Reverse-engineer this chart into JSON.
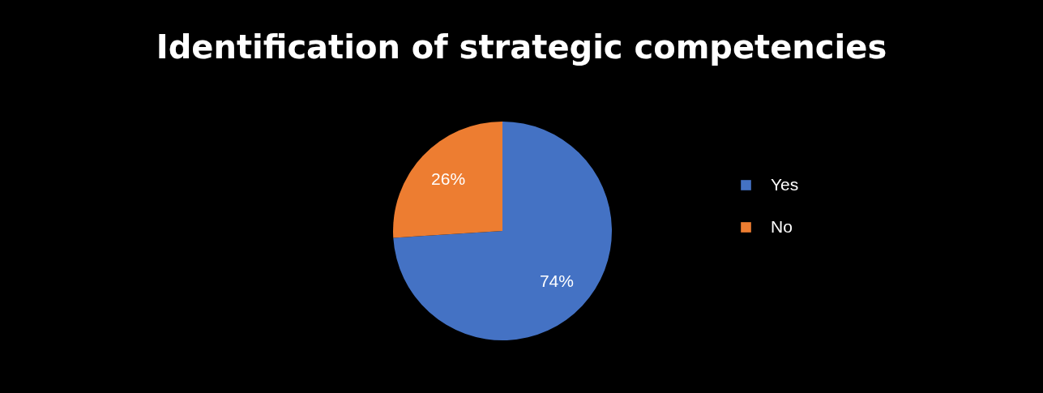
{
  "chart_data": {
    "type": "pie",
    "title": "Identification of strategic competencies",
    "categories": [
      "Yes",
      "No"
    ],
    "values": [
      74,
      26
    ],
    "colors": [
      "#4472c4",
      "#ed7d31"
    ],
    "value_labels": [
      "74%",
      "26%"
    ],
    "legend": "right"
  }
}
